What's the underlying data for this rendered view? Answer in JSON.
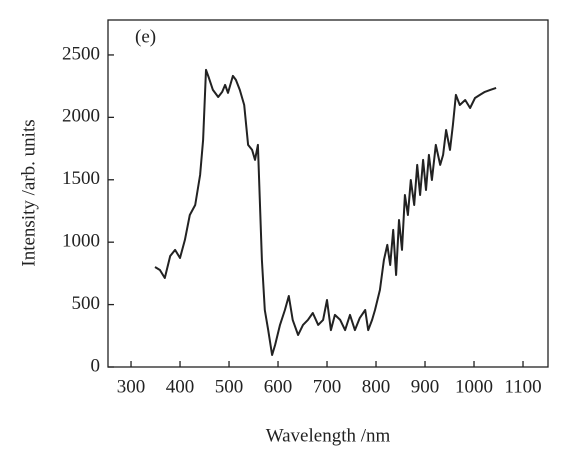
{
  "chart_data": {
    "type": "line",
    "annotation": "(e)",
    "x_label": "Wavelength /nm",
    "y_label": "Intensity /arb. units",
    "xlim": [
      253,
      1151
    ],
    "ylim": [
      0,
      2780
    ],
    "xticks": [
      300,
      400,
      500,
      600,
      700,
      800,
      900,
      1000,
      1100
    ],
    "yticks": [
      0,
      500,
      1000,
      1500,
      2000,
      2500
    ],
    "series": [
      {
        "color": "#222222",
        "x": [
          349,
          359,
          369,
          380,
          390,
          400,
          410,
          420,
          431,
          441,
          447,
          453,
          459,
          467,
          478,
          486,
          492,
          498,
          508,
          514,
          522,
          531,
          539,
          547,
          553,
          559,
          567,
          573,
          580,
          588,
          594,
          604,
          614,
          622,
          630,
          641,
          651,
          661,
          671,
          682,
          692,
          700,
          708,
          716,
          727,
          737,
          747,
          757,
          767,
          778,
          784,
          792,
          798,
          808,
          816,
          823,
          829,
          835,
          841,
          847,
          853,
          859,
          865,
          871,
          878,
          884,
          890,
          896,
          902,
          908,
          914,
          922,
          931,
          937,
          943,
          951,
          957,
          963,
          971,
          982,
          992,
          1002,
          1012,
          1022,
          1033,
          1045
        ],
        "values": [
          801,
          777,
          713,
          889,
          938,
          873,
          1018,
          1218,
          1298,
          1538,
          1819,
          2380,
          2316,
          2220,
          2163,
          2204,
          2260,
          2196,
          2332,
          2300,
          2220,
          2099,
          1779,
          1739,
          1659,
          1779,
          857,
          457,
          296,
          96,
          176,
          337,
          457,
          569,
          377,
          256,
          337,
          377,
          433,
          337,
          377,
          537,
          296,
          417,
          377,
          296,
          417,
          296,
          393,
          457,
          296,
          377,
          457,
          617,
          857,
          978,
          817,
          1098,
          737,
          1178,
          938,
          1378,
          1218,
          1498,
          1298,
          1619,
          1378,
          1659,
          1418,
          1699,
          1498,
          1779,
          1619,
          1699,
          1899,
          1739,
          1939,
          2180,
          2099,
          2139,
          2075,
          2155,
          2180,
          2204,
          2220,
          2236
        ]
      }
    ]
  }
}
